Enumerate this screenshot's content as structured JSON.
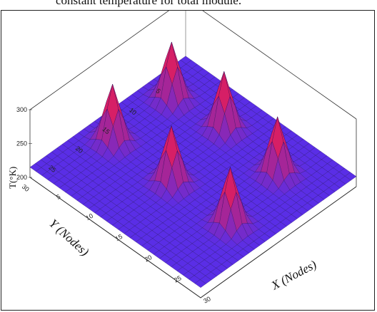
{
  "caption": "constant temperature for total module.",
  "chart_data": {
    "type": "surface",
    "xlabel": "X (Nodes)",
    "ylabel": "Y (Nodes)",
    "zlabel": "T(°K)",
    "x_ticks": [
      "5",
      "10",
      "15",
      "20",
      "25",
      "30"
    ],
    "y_ticks": [
      "5",
      "10",
      "15",
      "20",
      "25",
      "30"
    ],
    "z_ticks": [
      "300",
      "250",
      "200"
    ],
    "xlim": [
      1,
      30
    ],
    "ylim": [
      1,
      30
    ],
    "zlim": [
      200,
      300
    ],
    "base_temperature": 215,
    "hot_spots": [
      {
        "x": 5,
        "y": 8,
        "peak": 300
      },
      {
        "x": 13,
        "y": 7,
        "peak": 300
      },
      {
        "x": 23,
        "y": 8,
        "peak": 300
      },
      {
        "x": 5,
        "y": 19,
        "peak": 300
      },
      {
        "x": 15,
        "y": 19,
        "peak": 300
      },
      {
        "x": 25,
        "y": 19,
        "peak": 300
      }
    ],
    "grid": true,
    "colors": {
      "low": "#5a2ee6",
      "high": "#ff1a3c",
      "background": "#ffffff"
    }
  }
}
